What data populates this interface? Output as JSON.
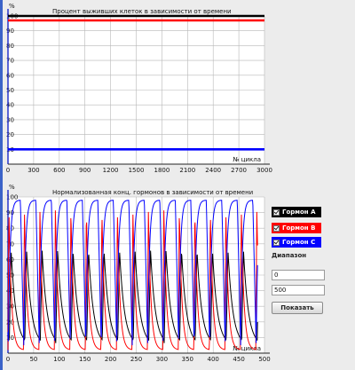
{
  "colors": {
    "hormone_a": "#000000",
    "hormone_b": "#ff0000",
    "hormone_c": "#0000ff",
    "blue_line": "#0a14c8",
    "dark_curve": "#404040"
  },
  "chart_data": [
    {
      "type": "line",
      "title": "Процент выживших клеток в зависимости от времени",
      "ylabel": "%",
      "xlabel": "№ цикла",
      "xlim": [
        0,
        3000
      ],
      "ylim": [
        0,
        100
      ],
      "xticks": [
        "0",
        "300",
        "600",
        "900",
        "1200",
        "1500",
        "1800",
        "2100",
        "2400",
        "2700",
        "3000"
      ],
      "yticks": [
        "10",
        "20",
        "30",
        "40",
        "50",
        "60",
        "70",
        "80",
        "90",
        "100"
      ],
      "grid": true,
      "series": [
        {
          "color": "black",
          "x": [
            0,
            3000
          ],
          "y": [
            100,
            100
          ]
        },
        {
          "color": "red",
          "x": [
            0,
            3000
          ],
          "y": [
            97,
            97
          ]
        },
        {
          "color": "blue",
          "x": [
            0,
            3000
          ],
          "y": [
            10,
            10
          ]
        }
      ]
    },
    {
      "type": "line",
      "title": "Нормализованная конц. гормонов в зависимости от времени",
      "ylabel": "%",
      "xlabel": "№ цикла",
      "xlim": [
        0,
        500
      ],
      "ylim": [
        0,
        100
      ],
      "xticks": [
        "0",
        "50",
        "100",
        "150",
        "200",
        "250",
        "300",
        "350",
        "400",
        "450",
        "500"
      ],
      "yticks": [
        "10",
        "20",
        "30",
        "40",
        "50",
        "60",
        "70",
        "80",
        "90",
        "100"
      ],
      "grid": true,
      "period": 30.2,
      "series": [
        {
          "name": "Гормон A",
          "color": "black",
          "form": "sawtooth",
          "peak": 66,
          "low": 5,
          "phase": 0.08
        },
        {
          "name": "Гормон B",
          "color": "red",
          "form": "spike",
          "peak": 92,
          "low": 2,
          "phase": 0
        },
        {
          "name": "Гормон C",
          "color": "blue",
          "form": "saturating",
          "peak": 98,
          "low": 5,
          "phase": 0.02
        }
      ]
    }
  ],
  "legend": {
    "a_label": "Гормон A",
    "b_label": "Гормон B",
    "c_label": "Гормон C"
  },
  "range": {
    "label": "Диапазон",
    "from": "0",
    "to": "500",
    "button": "Показать"
  }
}
